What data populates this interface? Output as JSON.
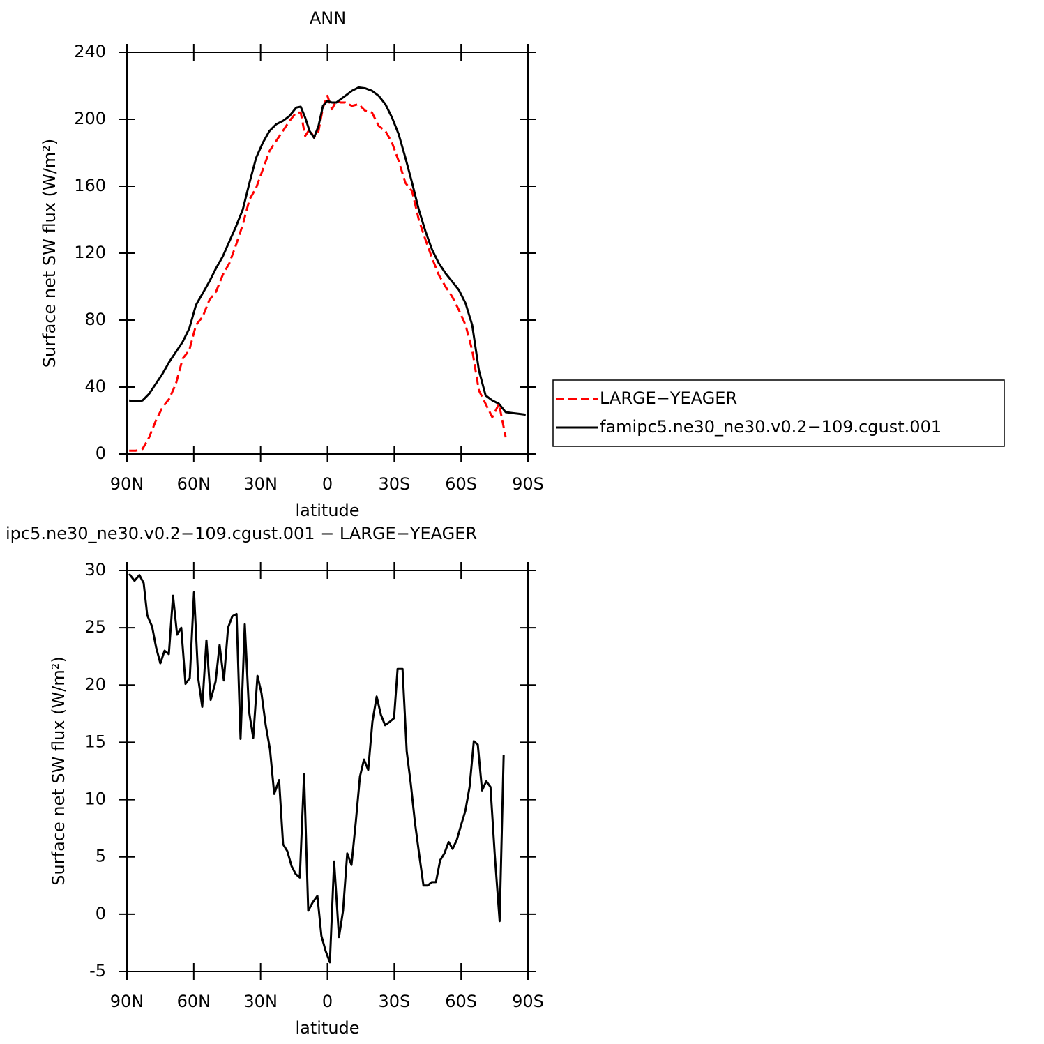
{
  "chart_data": [
    {
      "type": "line",
      "title": "ANN",
      "xlabel": "latitude",
      "ylabel": "Surface net SW flux (W/m²)",
      "xlim": [
        90,
        -90
      ],
      "xticks": [
        {
          "value": 90,
          "label": "90N"
        },
        {
          "value": 60,
          "label": "60N"
        },
        {
          "value": 30,
          "label": "30N"
        },
        0,
        {
          "value": -30,
          "label": "30S"
        },
        {
          "value": -60,
          "label": "60S"
        },
        {
          "value": -90,
          "label": "90S"
        }
      ],
      "ylim": [
        0,
        240
      ],
      "yticks": [
        0,
        40,
        80,
        120,
        160,
        200,
        240
      ],
      "legend": "right",
      "x": [
        89,
        86,
        83,
        80,
        77,
        74,
        71,
        68,
        65,
        62,
        59,
        56,
        53,
        50,
        47,
        44,
        41,
        38,
        35,
        32,
        29,
        26,
        23,
        20,
        17,
        14,
        12,
        10,
        8,
        6,
        4,
        2,
        0,
        -2,
        -4,
        -6,
        -8,
        -11,
        -14,
        -17,
        -20,
        -23,
        -26,
        -29,
        -32,
        -35,
        -38,
        -41,
        -44,
        -47,
        -50,
        -53,
        -56,
        -59,
        -62,
        -65,
        -68,
        -71,
        -74,
        -77,
        -80,
        -83,
        -86,
        -89
      ],
      "series": [
        {
          "name": "LARGE−YEAGER",
          "color": "#ff0000",
          "line_style": "dashed",
          "values": [
            2,
            2,
            3,
            10,
            20,
            28,
            33,
            42,
            57,
            62,
            77,
            82,
            92,
            97,
            107,
            114,
            125,
            137,
            152,
            159,
            170,
            181,
            187,
            193,
            199,
            204,
            204,
            190,
            194,
            189,
            193,
            207,
            214,
            206,
            211,
            210,
            210,
            208,
            209,
            205,
            204,
            196,
            193,
            186,
            175,
            162,
            157,
            140,
            128,
            117,
            107,
            100,
            94,
            86,
            77,
            62,
            38,
            30,
            22,
            30,
            10,
            null,
            null,
            null
          ]
        },
        {
          "name": "famipc5.ne30_ne30.v0.2−109.cgust.001",
          "color": "#000000",
          "line_style": "solid",
          "values": [
            32,
            31.5,
            32,
            36,
            42,
            48,
            55,
            61,
            67,
            75,
            89,
            96,
            103,
            111,
            118,
            127,
            136,
            146,
            162,
            177,
            186,
            193,
            197,
            199,
            202,
            207,
            207.5,
            201,
            193,
            189,
            196,
            208,
            211,
            210,
            210,
            212,
            214,
            217,
            219,
            218.5,
            217,
            214,
            209,
            201,
            191,
            177,
            162,
            146,
            133,
            122,
            114,
            108,
            103,
            98,
            90,
            77,
            50,
            35,
            32,
            30,
            25,
            24.5,
            24,
            23.5
          ]
        }
      ]
    },
    {
      "type": "line",
      "title": "ipc5.ne30_ne30.v0.2−109.cgust.001 − LARGE−YEAGER",
      "xlabel": "latitude",
      "ylabel": "Surface net SW flux (W/m²)",
      "xlim": [
        90,
        -90
      ],
      "xticks": [
        {
          "value": 90,
          "label": "90N"
        },
        {
          "value": 60,
          "label": "60N"
        },
        {
          "value": 30,
          "label": "30N"
        },
        0,
        {
          "value": -30,
          "label": "30S"
        },
        {
          "value": -60,
          "label": "60S"
        },
        {
          "value": -90,
          "label": "90S"
        }
      ],
      "ylim": [
        -5,
        30
      ],
      "yticks": [
        -5,
        0,
        5,
        10,
        15,
        20,
        25,
        30
      ],
      "x": [
        89,
        86.6,
        84.4,
        82.5,
        80.9,
        78.7,
        76.9,
        75,
        73.1,
        71.2,
        69.3,
        67.5,
        65.6,
        63.7,
        61.8,
        59.9,
        58,
        56.2,
        54.3,
        52.4,
        50.2,
        48.4,
        46.5,
        44.6,
        42.7,
        40.8,
        39,
        37.1,
        35.2,
        33.3,
        31.4,
        29.6,
        27.7,
        25.8,
        23.9,
        21.7,
        19.9,
        18,
        16.1,
        14.2,
        12.4,
        10.5,
        8.6,
        6.7,
        4.5,
        2.7,
        0.8,
        -1.1,
        -3,
        -5.2,
        -7,
        -8.9,
        -10.8,
        -12.7,
        -14.6,
        -16.4,
        -18.3,
        -20.2,
        -22.1,
        -24,
        -25.9,
        -28,
        -29.9,
        -31.5,
        -33.7,
        -35.6,
        -37.4,
        -39.3,
        -41.2,
        -43.1,
        -45,
        -46.8,
        -48.7,
        -50.6,
        -52.5,
        -54.4,
        -56.2,
        -58.1,
        -60,
        -61.9,
        -63.8,
        -65.7,
        -67.5,
        -69.4,
        -71.3,
        -73.2,
        -75.1,
        -77.3,
        -79.1
      ],
      "series": [
        {
          "color": "#000000",
          "line_style": "solid",
          "values": [
            29.7,
            29.1,
            29.6,
            28.9,
            26.1,
            25.1,
            23.3,
            21.9,
            23,
            22.7,
            27.8,
            24.4,
            25,
            20.1,
            20.6,
            28.1,
            20.6,
            18.1,
            23.9,
            18.7,
            20.3,
            23.5,
            20.4,
            25,
            26,
            26.2,
            15.3,
            25.3,
            17.7,
            15.4,
            20.8,
            19.3,
            16.5,
            14.4,
            10.5,
            11.7,
            6.1,
            5.5,
            4.2,
            3.5,
            3.2,
            12.2,
            0.3,
            1,
            1.6,
            -1.9,
            -3.2,
            -4.2,
            4.6,
            -2,
            0.3,
            5.3,
            4.3,
            8,
            12,
            13.5,
            12.6,
            16.8,
            19,
            17.4,
            16.5,
            16.8,
            17.1,
            21.4,
            21.4,
            14.2,
            11.4,
            8,
            5.2,
            2.5,
            2.5,
            2.8,
            2.8,
            4.7,
            5.3,
            6.3,
            5.7,
            6.5,
            7.8,
            9,
            11.1,
            15.1,
            14.8,
            10.8,
            11.6,
            11.1,
            5.2,
            -0.6,
            13.9
          ]
        }
      ]
    }
  ]
}
